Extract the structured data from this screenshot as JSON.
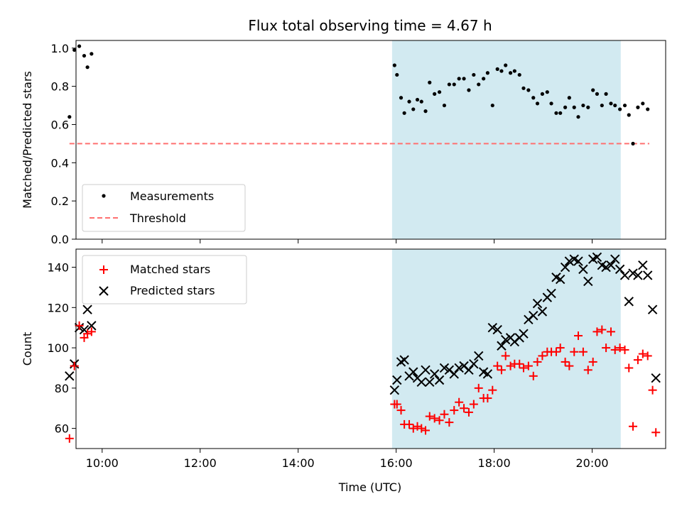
{
  "title": "Flux total observing time = 4.67 h",
  "xlabel": "Time (UTC)",
  "colors": {
    "shade": "#add8e6",
    "matched": "#ff0000",
    "predicted": "#000000",
    "threshold": "#ff7070",
    "measurement": "#000000"
  },
  "chart_data": [
    {
      "type": "scatter",
      "ylabel": "Matched/Predicted stars",
      "xlim": [
        "09:28",
        "21:30"
      ],
      "ylim": [
        0,
        1.04
      ],
      "yticks": [
        0.0,
        0.2,
        0.4,
        0.6,
        0.8,
        1.0
      ],
      "ytick_labels": [
        "0.0",
        "0.2",
        "0.4",
        "0.6",
        "0.8",
        "1.0"
      ],
      "shaded_span": [
        "15:55",
        "20:35"
      ],
      "legend": {
        "placement": "lower left",
        "entries": [
          "Measurements",
          "Threshold"
        ]
      },
      "threshold": {
        "name": "Threshold",
        "y": 0.5,
        "x": [
          "09:20",
          "21:10"
        ]
      },
      "series": [
        {
          "name": "Measurements",
          "x": [
            "09:20",
            "09:26",
            "09:32",
            "09:38",
            "09:42",
            "09:47",
            "15:58",
            "16:01",
            "16:06",
            "16:10",
            "16:16",
            "16:21",
            "16:26",
            "16:31",
            "16:36",
            "16:41",
            "16:47",
            "16:53",
            "16:59",
            "17:05",
            "17:11",
            "17:17",
            "17:23",
            "17:29",
            "17:35",
            "17:41",
            "17:47",
            "17:52",
            "17:58",
            "18:04",
            "18:09",
            "18:14",
            "18:20",
            "18:25",
            "18:31",
            "18:36",
            "18:42",
            "18:48",
            "18:53",
            "18:59",
            "19:05",
            "19:10",
            "19:16",
            "19:21",
            "19:27",
            "19:32",
            "19:38",
            "19:43",
            "19:49",
            "19:55",
            "20:01",
            "20:06",
            "20:12",
            "20:17",
            "20:23",
            "20:28",
            "20:34",
            "20:40",
            "20:45",
            "20:50",
            "20:56",
            "21:02",
            "21:08"
          ],
          "y": [
            0.64,
            0.99,
            1.01,
            0.96,
            0.9,
            0.97,
            0.91,
            0.86,
            0.74,
            0.66,
            0.72,
            0.68,
            0.73,
            0.72,
            0.67,
            0.82,
            0.76,
            0.77,
            0.7,
            0.81,
            0.81,
            0.84,
            0.84,
            0.78,
            0.86,
            0.81,
            0.84,
            0.87,
            0.7,
            0.89,
            0.88,
            0.91,
            0.87,
            0.88,
            0.86,
            0.79,
            0.78,
            0.74,
            0.71,
            0.76,
            0.77,
            0.71,
            0.66,
            0.66,
            0.69,
            0.74,
            0.69,
            0.64,
            0.7,
            0.69,
            0.78,
            0.76,
            0.7,
            0.76,
            0.71,
            0.7,
            0.68,
            0.7,
            0.65,
            0.5,
            0.69,
            0.71,
            0.68
          ]
        }
      ]
    },
    {
      "type": "scatter",
      "ylabel": "Count",
      "xlim": [
        "09:28",
        "21:30"
      ],
      "ylim": [
        50,
        149
      ],
      "yticks": [
        60,
        80,
        100,
        120,
        140
      ],
      "ytick_labels": [
        "60",
        "80",
        "100",
        "120",
        "140"
      ],
      "xticks": [
        "10:00",
        "12:00",
        "14:00",
        "16:00",
        "18:00",
        "20:00"
      ],
      "shaded_span": [
        "15:55",
        "20:35"
      ],
      "legend": {
        "placement": "upper left",
        "entries": [
          "Matched stars",
          "Predicted stars"
        ]
      },
      "series": [
        {
          "name": "Matched stars",
          "marker": "plus",
          "x": [
            "09:20",
            "09:26",
            "09:32",
            "09:38",
            "09:42",
            "09:47",
            "15:58",
            "16:01",
            "16:06",
            "16:10",
            "16:16",
            "16:21",
            "16:26",
            "16:31",
            "16:36",
            "16:41",
            "16:47",
            "16:53",
            "16:59",
            "17:05",
            "17:11",
            "17:17",
            "17:23",
            "17:29",
            "17:35",
            "17:41",
            "17:47",
            "17:52",
            "17:58",
            "18:04",
            "18:09",
            "18:14",
            "18:20",
            "18:25",
            "18:31",
            "18:36",
            "18:42",
            "18:48",
            "18:53",
            "18:59",
            "19:05",
            "19:10",
            "19:16",
            "19:21",
            "19:27",
            "19:32",
            "19:38",
            "19:43",
            "19:49",
            "19:55",
            "20:01",
            "20:06",
            "20:12",
            "20:17",
            "20:23",
            "20:28",
            "20:34",
            "20:40",
            "20:45",
            "20:50",
            "20:56",
            "21:02",
            "21:08"
          ],
          "y": [
            55,
            91,
            111,
            105,
            107,
            108,
            72,
            72,
            69,
            62,
            62,
            60,
            61,
            60,
            59,
            66,
            65,
            64,
            67,
            63,
            69,
            73,
            70,
            68,
            72,
            80,
            75,
            75,
            79,
            91,
            89,
            96,
            91,
            92,
            92,
            90,
            91,
            86,
            93,
            96,
            98,
            98,
            98,
            100,
            93,
            91,
            98,
            106,
            98,
            89,
            93,
            108,
            109,
            100,
            108,
            99,
            100,
            99,
            90,
            61,
            94,
            97,
            96
          ]
        },
        {
          "name": "Predicted stars",
          "marker": "x",
          "x": [
            "09:20",
            "09:26",
            "09:32",
            "09:38",
            "09:42",
            "09:47",
            "15:58",
            "16:01",
            "16:06",
            "16:10",
            "16:16",
            "16:21",
            "16:26",
            "16:31",
            "16:36",
            "16:41",
            "16:47",
            "16:53",
            "16:59",
            "17:05",
            "17:11",
            "17:17",
            "17:23",
            "17:29",
            "17:35",
            "17:41",
            "17:47",
            "17:52",
            "17:58",
            "18:04",
            "18:09",
            "18:14",
            "18:20",
            "18:25",
            "18:31",
            "18:36",
            "18:42",
            "18:48",
            "18:53",
            "18:59",
            "19:05",
            "19:10",
            "19:16",
            "19:21",
            "19:27",
            "19:32",
            "19:38",
            "19:43",
            "19:49",
            "19:55",
            "20:01",
            "20:06",
            "20:12",
            "20:17",
            "20:23",
            "20:28",
            "20:34",
            "20:40",
            "20:45",
            "20:50",
            "20:56",
            "21:02",
            "21:08"
          ],
          "y": [
            86,
            92,
            110,
            109,
            119,
            111,
            79,
            84,
            93,
            94,
            86,
            88,
            85,
            83,
            89,
            83,
            87,
            84,
            90,
            89,
            87,
            90,
            91,
            89,
            92,
            96,
            88,
            87,
            110,
            109,
            101,
            104,
            105,
            103,
            105,
            107,
            114,
            116,
            122,
            118,
            125,
            127,
            135,
            134,
            140,
            143,
            144,
            143,
            139,
            133,
            144,
            145,
            141,
            140,
            141,
            144,
            139,
            136,
            123,
            137,
            136,
            141,
            136
          ]
        }
      ]
    }
  ],
  "extra_points": {
    "matched": {
      "x": [
        "21:14",
        "21:18"
      ],
      "y": [
        79,
        58
      ]
    },
    "predicted": {
      "x": [
        "21:14",
        "21:18"
      ],
      "y": [
        119,
        85
      ]
    }
  }
}
